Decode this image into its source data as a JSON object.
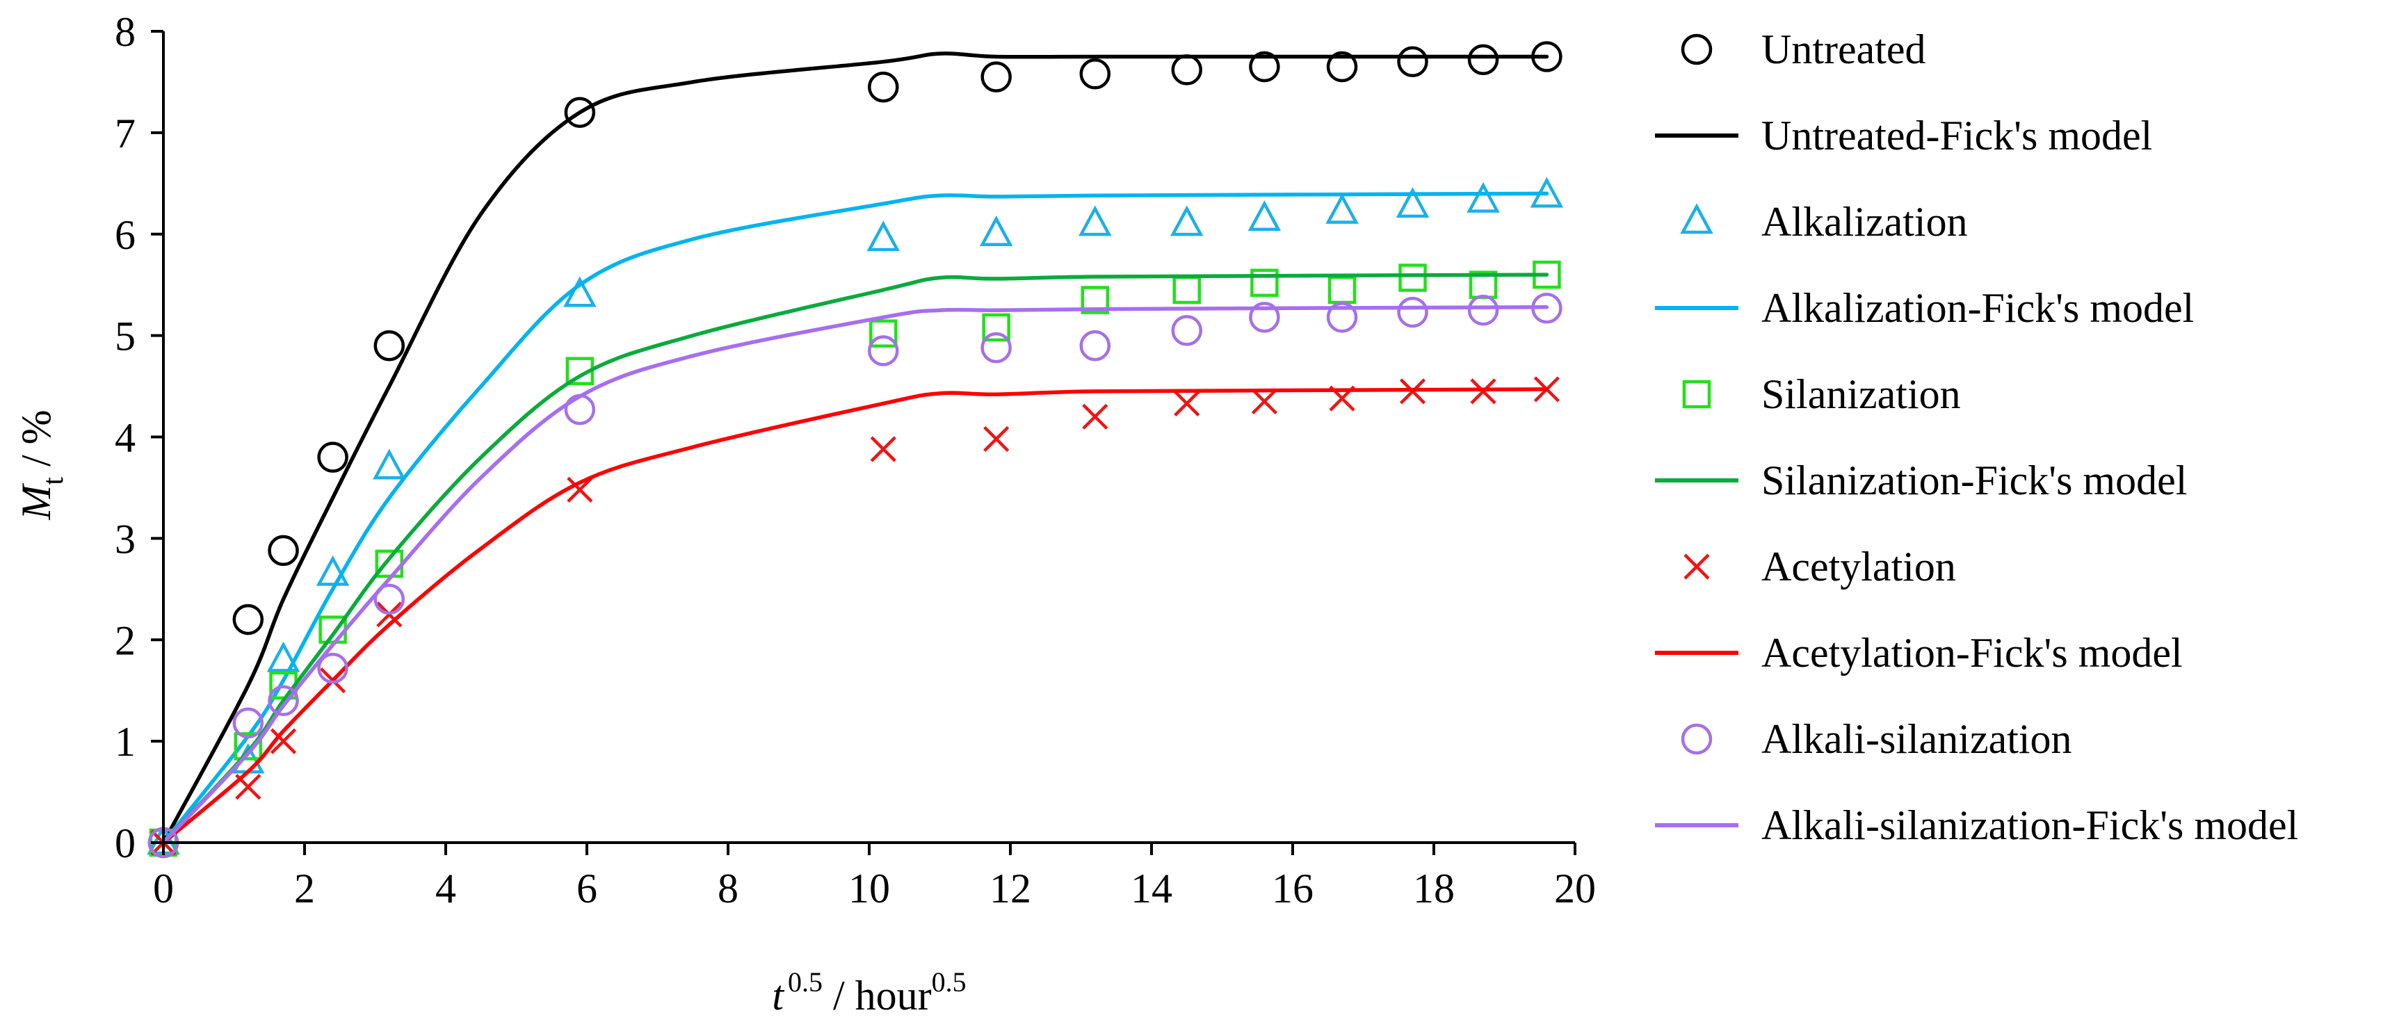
{
  "chart_data": {
    "type": "scatter",
    "title": "",
    "xlabel": {
      "base": "t",
      "base_sup": "0.5",
      "sep": " / hour",
      "unit_sup": "0.5"
    },
    "ylabel": {
      "base": "M",
      "base_sub": "t",
      "sep": " / %"
    },
    "xlim": [
      0,
      20
    ],
    "ylim": [
      0,
      8
    ],
    "xticks": [
      "0",
      "2",
      "4",
      "6",
      "8",
      "10",
      "12",
      "14",
      "16",
      "18",
      "20"
    ],
    "yticks": [
      "0",
      "1",
      "2",
      "3",
      "4",
      "5",
      "6",
      "7",
      "8"
    ],
    "grid": false,
    "legend_position": "right",
    "series": [
      {
        "name": "Untreated",
        "kind": "markers",
        "marker": "circle",
        "color": "#000000",
        "x": [
          0,
          1.2,
          1.7,
          2.4,
          3.2,
          5.9,
          10.2,
          11.8,
          13.2,
          14.5,
          15.6,
          16.7,
          17.7,
          18.7,
          19.6
        ],
        "y": [
          0,
          2.2,
          2.88,
          3.8,
          4.9,
          7.2,
          7.45,
          7.55,
          7.58,
          7.62,
          7.65,
          7.65,
          7.7,
          7.72,
          7.75
        ]
      },
      {
        "name": "Untreated-Fick's model",
        "kind": "line",
        "color": "#000000",
        "x": [
          0,
          1.2,
          1.7,
          2.4,
          3.2,
          4.5,
          5.9,
          7.5,
          10.2,
          11.0,
          11.8,
          13.2,
          16.0,
          19.6
        ],
        "y": [
          0,
          1.55,
          2.4,
          3.4,
          4.5,
          6.2,
          7.2,
          7.5,
          7.7,
          7.78,
          7.75,
          7.75,
          7.75,
          7.75
        ]
      },
      {
        "name": "Alkalization",
        "kind": "markers",
        "marker": "triangle",
        "color": "#1CB0E8",
        "x": [
          0,
          1.2,
          1.7,
          2.4,
          3.2,
          5.9,
          10.2,
          11.8,
          13.2,
          14.5,
          15.6,
          16.7,
          17.7,
          18.7,
          19.6
        ],
        "y": [
          0,
          0.8,
          1.8,
          2.65,
          3.7,
          5.4,
          5.95,
          6.0,
          6.1,
          6.1,
          6.15,
          6.22,
          6.28,
          6.33,
          6.38
        ]
      },
      {
        "name": "Alkalization-Fick's model",
        "kind": "line",
        "color": "#00B4F0",
        "x": [
          0,
          1.2,
          1.7,
          2.4,
          3.2,
          4.5,
          5.9,
          7.5,
          10.2,
          11.0,
          11.8,
          13.2,
          16.0,
          19.6
        ],
        "y": [
          0,
          1.05,
          1.6,
          2.5,
          3.4,
          4.5,
          5.5,
          5.95,
          6.3,
          6.38,
          6.37,
          6.38,
          6.39,
          6.4
        ]
      },
      {
        "name": "Silanization",
        "kind": "markers",
        "marker": "square",
        "color": "#22E01A",
        "x": [
          0,
          1.2,
          1.7,
          2.4,
          3.2,
          5.9,
          10.2,
          11.8,
          13.2,
          14.5,
          15.6,
          16.7,
          17.7,
          18.7,
          19.6
        ],
        "y": [
          0,
          0.95,
          1.55,
          2.1,
          2.75,
          4.65,
          5.02,
          5.08,
          5.35,
          5.45,
          5.52,
          5.45,
          5.57,
          5.5,
          5.6
        ]
      },
      {
        "name": "Silanization-Fick's model",
        "kind": "line",
        "color": "#0AAB3C",
        "x": [
          0,
          1.2,
          1.7,
          2.4,
          3.2,
          4.5,
          5.9,
          7.5,
          10.2,
          11.0,
          11.8,
          13.2,
          16.0,
          19.6
        ],
        "y": [
          0,
          0.9,
          1.4,
          2.05,
          2.8,
          3.8,
          4.6,
          5.0,
          5.45,
          5.57,
          5.56,
          5.58,
          5.59,
          5.6
        ]
      },
      {
        "name": "Acetylation",
        "kind": "markers",
        "marker": "cross",
        "color": "#F01414",
        "x": [
          0,
          1.2,
          1.7,
          2.4,
          3.2,
          5.9,
          10.2,
          11.8,
          13.2,
          14.5,
          15.6,
          16.7,
          17.7,
          18.7,
          19.6
        ],
        "y": [
          0,
          0.55,
          1.0,
          1.6,
          2.25,
          3.48,
          3.88,
          3.98,
          4.2,
          4.33,
          4.35,
          4.38,
          4.45,
          4.45,
          4.47
        ]
      },
      {
        "name": "Acetylation-Fick's model",
        "kind": "line",
        "color": "#FF0000",
        "x": [
          0,
          1.2,
          1.7,
          2.4,
          3.2,
          4.5,
          5.9,
          7.5,
          10.2,
          11.0,
          11.8,
          13.2,
          16.0,
          19.6
        ],
        "y": [
          0,
          0.7,
          1.1,
          1.6,
          2.15,
          2.9,
          3.55,
          3.9,
          4.33,
          4.43,
          4.42,
          4.45,
          4.46,
          4.47
        ]
      },
      {
        "name": "Alkali-silanization",
        "kind": "markers",
        "marker": "circle",
        "color": "#A670E8",
        "x": [
          0,
          1.2,
          1.7,
          2.4,
          3.2,
          5.9,
          10.2,
          11.8,
          13.2,
          14.5,
          15.6,
          16.7,
          17.7,
          18.7,
          19.6
        ],
        "y": [
          0,
          1.18,
          1.4,
          1.72,
          2.4,
          4.27,
          4.85,
          4.88,
          4.9,
          5.05,
          5.18,
          5.18,
          5.23,
          5.25,
          5.27
        ]
      },
      {
        "name": "Alkali-silanization-Fick's model",
        "kind": "line",
        "color": "#A66EF0",
        "x": [
          0,
          1.2,
          1.7,
          2.4,
          3.2,
          4.5,
          5.9,
          7.5,
          10.2,
          11.0,
          11.8,
          13.2,
          16.0,
          19.6
        ],
        "y": [
          0,
          0.88,
          1.35,
          1.95,
          2.6,
          3.6,
          4.4,
          4.8,
          5.18,
          5.25,
          5.25,
          5.26,
          5.27,
          5.28
        ]
      }
    ]
  }
}
